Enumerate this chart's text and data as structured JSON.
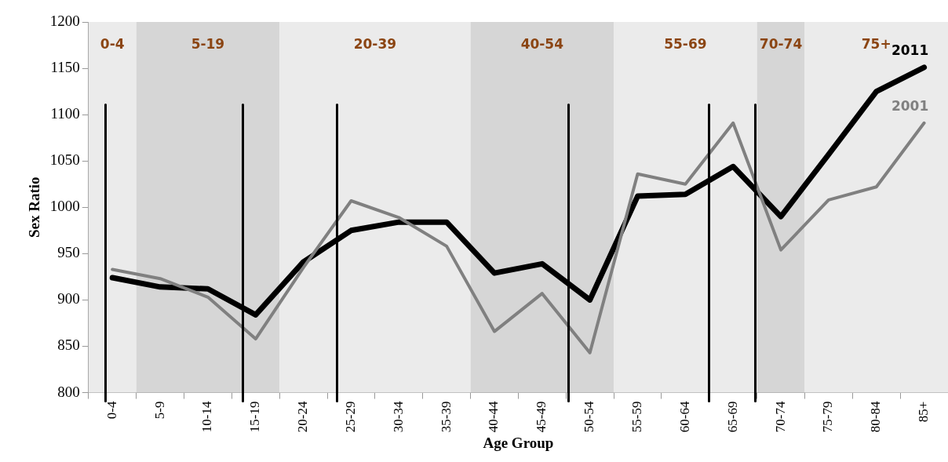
{
  "chart_data": {
    "type": "line",
    "xlabel": "Age Group",
    "ylabel": "Sex Ratio",
    "categories": [
      "0-4",
      "5-9",
      "10-14",
      "15-19",
      "20-24",
      "25-29",
      "30-34",
      "35-39",
      "40-44",
      "45-49",
      "50-54",
      "55-59",
      "60-64",
      "65-69",
      "70-74",
      "75-79",
      "80-84",
      "85+"
    ],
    "series": [
      {
        "name": "2001",
        "color": "#808080",
        "values": [
          933,
          923,
          903,
          858,
          935,
          1007,
          989,
          958,
          866,
          907,
          843,
          1036,
          1025,
          1091,
          954,
          1008,
          1022,
          1091
        ]
      },
      {
        "name": "2011",
        "color": "#000000",
        "values": [
          924,
          914,
          912,
          884,
          941,
          975,
          984,
          984,
          929,
          939,
          900,
          1012,
          1014,
          1044,
          990,
          1057,
          1125,
          1151
        ]
      }
    ],
    "ylim": [
      800,
      1200
    ],
    "yticks": [
      800,
      850,
      900,
      950,
      1000,
      1050,
      1100,
      1150,
      1200
    ],
    "grid": false,
    "legend": false,
    "marker": "none",
    "line_style": "solid",
    "bands": [
      {
        "axis": "x",
        "from": "0-4",
        "to": "0-4",
        "label": "0-4",
        "color": "#ebebeb"
      },
      {
        "axis": "x",
        "from": "5-9",
        "to": "15-19",
        "label": "5-19",
        "color": "#d6d6d6"
      },
      {
        "axis": "x",
        "from": "20-24",
        "to": "35-39",
        "label": "20-39",
        "color": "#ebebeb"
      },
      {
        "axis": "x",
        "from": "40-44",
        "to": "50-54",
        "label": "40-54",
        "color": "#d6d6d6"
      },
      {
        "axis": "x",
        "from": "55-59",
        "to": "65-69",
        "label": "55-69",
        "color": "#ebebeb"
      },
      {
        "axis": "x",
        "from": "70-74",
        "to": "70-74",
        "label": "70-74",
        "color": "#d6d6d6"
      },
      {
        "axis": "x",
        "from": "75-79",
        "to": "85+",
        "label": "75+",
        "color": "#ebebeb"
      }
    ]
  }
}
